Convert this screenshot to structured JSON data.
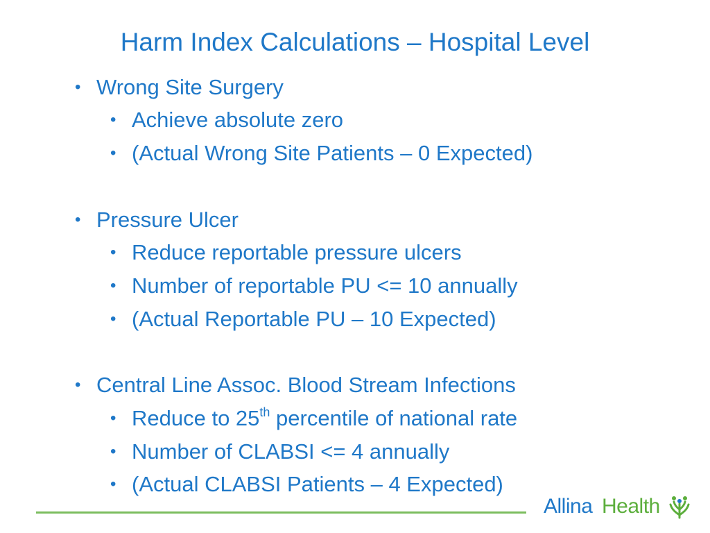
{
  "slide": {
    "title": "Harm Index Calculations – Hospital Level"
  },
  "bullet_glyph": "•",
  "sections": [
    {
      "heading": "Wrong Site Surgery",
      "items": [
        "Achieve absolute zero",
        "(Actual Wrong Site Patients – 0 Expected)"
      ]
    },
    {
      "heading": "Pressure Ulcer",
      "items": [
        "Reduce reportable pressure ulcers",
        "Number of reportable PU <= 10 annually",
        "(Actual Reportable PU – 10 Expected)"
      ]
    },
    {
      "heading": "Central Line Assoc. Blood Stream Infections",
      "items": [
        {
          "before": "Reduce to 25",
          "sup": "th",
          "after": " percentile of national rate"
        },
        "Number of CLABSI <= 4 annually",
        "(Actual CLABSI Patients – 4 Expected)"
      ]
    }
  ],
  "logo": {
    "part1": "Allina",
    "part2": "Health",
    "icon": "allina-health-leaf-icon"
  },
  "colors": {
    "text_blue": "#1f78c8",
    "rule_green": "#7bbd5e",
    "logo_green": "#5cae3c",
    "background": "#ffffff"
  }
}
